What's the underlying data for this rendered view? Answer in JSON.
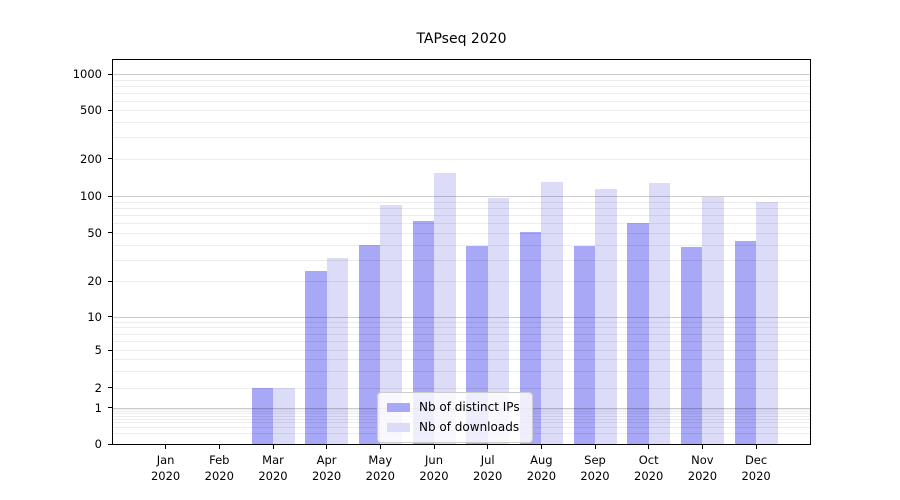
{
  "chart_data": {
    "type": "bar",
    "title": "TAPseq 2020",
    "x": {
      "categories": [
        "Jan",
        "Feb",
        "Mar",
        "Apr",
        "May",
        "Jun",
        "Jul",
        "Aug",
        "Sep",
        "Oct",
        "Nov",
        "Dec"
      ],
      "year_label": "2020"
    },
    "series": [
      {
        "name": "Nb of distinct IPs",
        "color": "#a8a8f6",
        "values": [
          0,
          0,
          2,
          24,
          40,
          63,
          39,
          51,
          39,
          60,
          38,
          43
        ]
      },
      {
        "name": "Nb of downloads",
        "color": "#dcdcf8",
        "values": [
          0,
          0,
          2,
          31,
          84,
          152,
          97,
          130,
          113,
          127,
          99,
          89
        ]
      }
    ],
    "y_axis": {
      "scale": "symlog",
      "ticks": [
        {
          "label": "1000",
          "value": 1000
        },
        {
          "label": "500",
          "value": 500
        },
        {
          "label": "200",
          "value": 200
        },
        {
          "label": "100",
          "value": 100
        },
        {
          "label": "50",
          "value": 50
        },
        {
          "label": "20",
          "value": 20
        },
        {
          "label": "10",
          "value": 10
        },
        {
          "label": "5",
          "value": 5
        },
        {
          "label": "2",
          "value": 2
        },
        {
          "label": "1",
          "value": 1
        },
        {
          "label": "0",
          "value": 0
        }
      ],
      "major_gridline_values": [
        1000,
        100,
        10,
        1
      ],
      "minor_gridline_values": [
        900,
        800,
        700,
        600,
        500,
        400,
        300,
        200,
        90,
        80,
        70,
        60,
        50,
        40,
        30,
        20,
        9,
        8,
        7,
        6,
        5,
        4,
        3,
        2,
        0.9,
        0.8,
        0.7,
        0.6,
        0.5,
        0.4,
        0.3,
        0.2
      ]
    },
    "legend": {
      "position": "lower center",
      "entries": [
        "Nb of distinct IPs",
        "Nb of downloads"
      ]
    },
    "grid": true,
    "colors": {
      "background": "#ffffff",
      "spine": "#000000",
      "distinct_ips_bar": "#a8a8f6",
      "downloads_bar": "#dcdcf8"
    }
  }
}
